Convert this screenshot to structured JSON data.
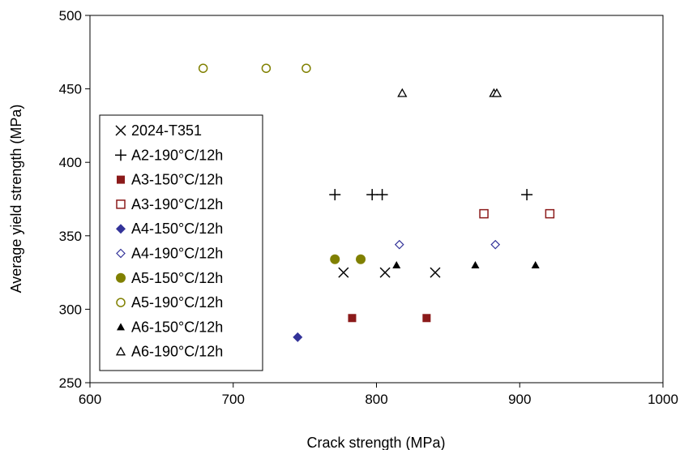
{
  "chart_data": {
    "type": "scatter",
    "xlabel": "Crack strength (MPa)",
    "ylabel": "Average yield strength (MPa)",
    "xlim": [
      600,
      1000
    ],
    "ylim": [
      250,
      500
    ],
    "x_ticks": [
      600,
      700,
      800,
      900,
      1000
    ],
    "y_ticks": [
      250,
      300,
      350,
      400,
      450,
      500
    ],
    "x_tick_labels": [
      "600",
      "700",
      "800",
      "900",
      "1000"
    ],
    "y_tick_labels": [
      "250",
      "300",
      "350",
      "400",
      "450",
      "500"
    ],
    "grid": false,
    "legend_position": "left",
    "series": [
      {
        "name": "2024-T351",
        "marker": "x",
        "color": "#000000",
        "points": [
          [
            777,
            325
          ],
          [
            806,
            325
          ],
          [
            841,
            325
          ]
        ]
      },
      {
        "name": "A2-190°C/12h",
        "marker": "plus",
        "color": "#000000",
        "points": [
          [
            771,
            378
          ],
          [
            797,
            378
          ],
          [
            804,
            378
          ],
          [
            905,
            378
          ]
        ]
      },
      {
        "name": "A3-150°C/12h",
        "marker": "square-filled",
        "color": "#8B1A1A",
        "points": [
          [
            783,
            294
          ],
          [
            835,
            294
          ]
        ]
      },
      {
        "name": "A3-190°C/12h",
        "marker": "square-open",
        "color": "#8B1A1A",
        "points": [
          [
            875,
            365
          ],
          [
            921,
            365
          ]
        ]
      },
      {
        "name": "A4-150°C/12h",
        "marker": "diamond-filled",
        "color": "#333399",
        "points": [
          [
            745,
            281
          ]
        ]
      },
      {
        "name": "A4-190°C/12h",
        "marker": "diamond-open",
        "color": "#333399",
        "points": [
          [
            816,
            344
          ],
          [
            883,
            344
          ]
        ]
      },
      {
        "name": "A5-150°C/12h",
        "marker": "circle-filled",
        "color": "#808000",
        "points": [
          [
            771,
            334
          ],
          [
            789,
            334
          ]
        ]
      },
      {
        "name": "A5-190°C/12h",
        "marker": "circle-open",
        "color": "#808000",
        "points": [
          [
            679,
            464
          ],
          [
            723,
            464
          ],
          [
            751,
            464
          ]
        ]
      },
      {
        "name": "A6-150°C/12h",
        "marker": "triangle-filled",
        "color": "#000000",
        "points": [
          [
            814,
            330
          ],
          [
            869,
            330
          ],
          [
            911,
            330
          ]
        ]
      },
      {
        "name": "A6-190°C/12h",
        "marker": "triangle-open",
        "color": "#000000",
        "points": [
          [
            818,
            447
          ],
          [
            882,
            447
          ],
          [
            884,
            447
          ]
        ]
      }
    ]
  }
}
